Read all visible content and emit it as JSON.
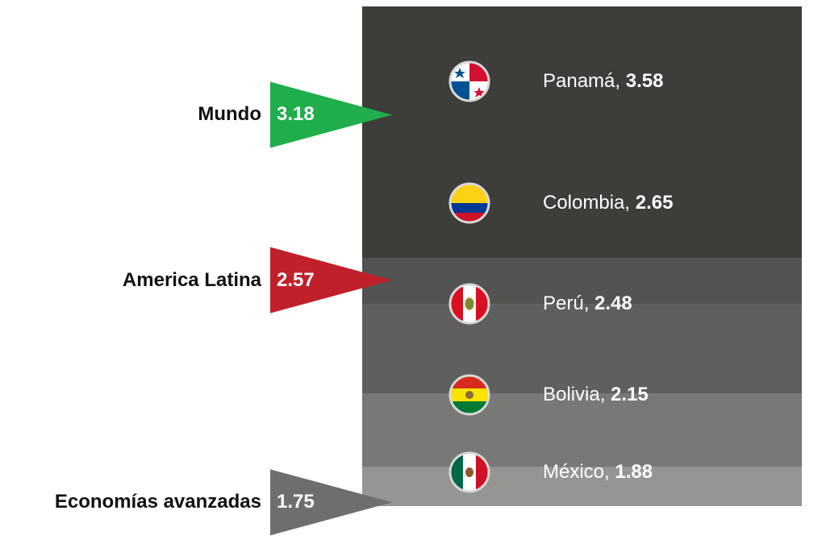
{
  "chart_data": {
    "type": "bar",
    "bars": [
      {
        "country": "Panamá",
        "value": 3.58,
        "flag": "panama-flag",
        "value_label": "3.58"
      },
      {
        "country": "Colombia",
        "value": 2.65,
        "flag": "colombia-flag",
        "value_label": "2.65"
      },
      {
        "country": "Perú",
        "value": 2.48,
        "flag": "peru-flag",
        "value_label": "2.48"
      },
      {
        "country": "Bolivia",
        "value": 2.15,
        "flag": "bolivia-flag",
        "value_label": "2.15"
      },
      {
        "country": "México",
        "value": 1.88,
        "flag": "mexico-flag",
        "value_label": "1.88"
      }
    ],
    "benchmarks": [
      {
        "name": "Mundo",
        "value": 3.18,
        "value_label": "3.18",
        "color": "#1fae4b"
      },
      {
        "name": "America Latina",
        "value": 2.57,
        "value_label": "2.57",
        "color": "#c0202a"
      },
      {
        "name": "Economías avanzadas",
        "value": 1.75,
        "value_label": "1.75",
        "color": "#6e6e6c"
      }
    ],
    "band_colors": [
      "#3d3d3a",
      "#535351",
      "#5f5f5d",
      "#787876",
      "#959593"
    ],
    "grid": false
  }
}
